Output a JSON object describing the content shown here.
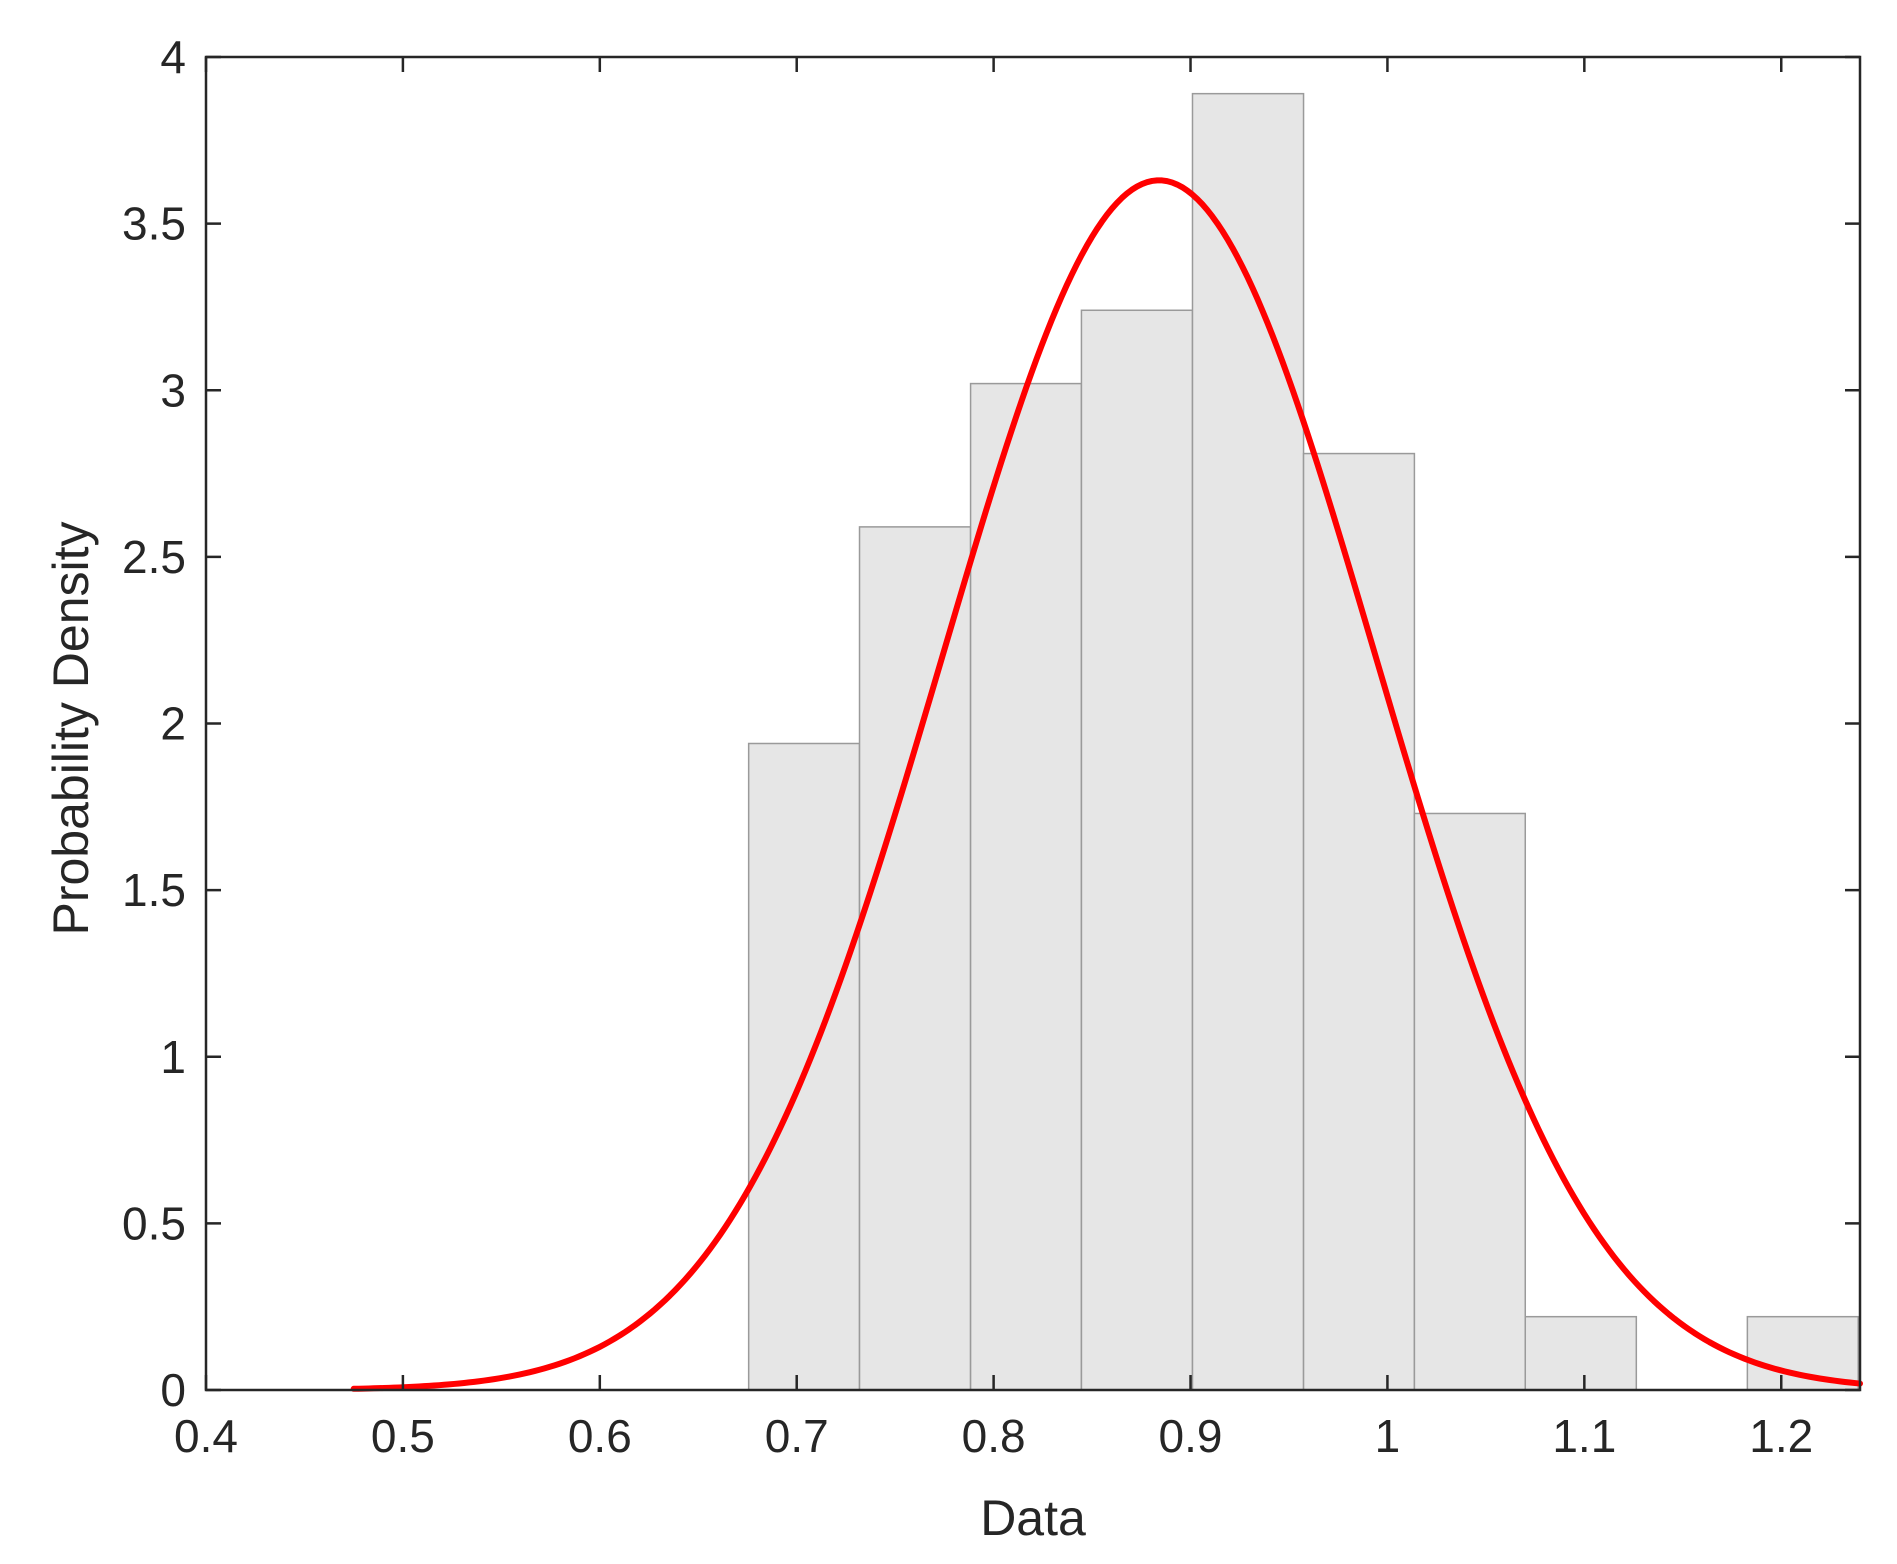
{
  "chart_data": {
    "type": "bar",
    "xlabel": "Data",
    "ylabel": "Probability Density",
    "xlim": [
      0.4,
      1.24
    ],
    "ylim": [
      0,
      4
    ],
    "x_ticks": [
      "0.4",
      "0.5",
      "0.6",
      "0.7",
      "0.8",
      "0.9",
      "1",
      "1.1",
      "1.2"
    ],
    "y_ticks": [
      "0",
      "0.5",
      "1",
      "1.5",
      "2",
      "2.5",
      "3",
      "3.5",
      "4"
    ],
    "histogram": {
      "bin_edges": [
        0.6756,
        0.7319,
        0.7883,
        0.8446,
        0.901,
        0.9574,
        1.0137,
        1.07,
        1.1264,
        1.1828,
        1.2391
      ],
      "values": [
        1.94,
        2.59,
        3.02,
        3.24,
        3.89,
        2.81,
        1.73,
        0.22,
        0,
        0.22
      ],
      "fill_color": "#e6e6e6",
      "edge_color": "#9a9a9a"
    },
    "fit_curve": {
      "type": "normal",
      "mean": 0.884,
      "std": 0.11,
      "peak": 3.63,
      "x_range": [
        0.475,
        1.24
      ],
      "color": "#ff0000"
    },
    "grid": false,
    "legend": null
  }
}
